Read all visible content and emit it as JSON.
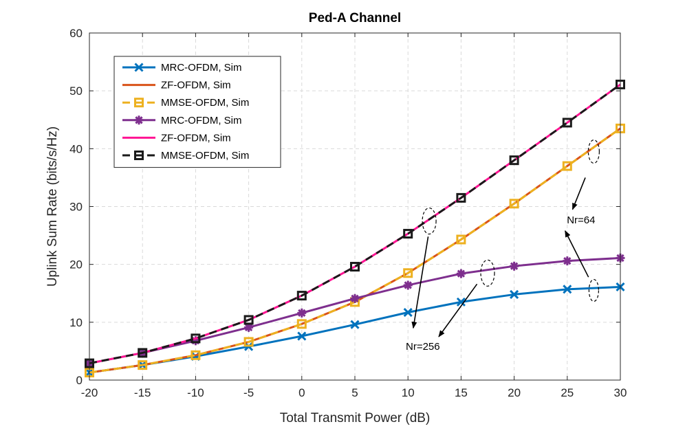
{
  "chart_data": {
    "type": "line",
    "title": "Ped-A Channel",
    "xlabel": "Total Transmit Power (dB)",
    "ylabel": "Uplink Sum Rate (bits/s/Hz)",
    "xlim": [
      -20,
      30
    ],
    "ylim": [
      0,
      60
    ],
    "xticks": [
      "-20",
      "-15",
      "-10",
      "-5",
      "0",
      "5",
      "10",
      "15",
      "20",
      "25",
      "30"
    ],
    "yticks": [
      "0",
      "10",
      "20",
      "30",
      "40",
      "50",
      "60"
    ],
    "grid": true,
    "legend_position": "top-left",
    "x": [
      -20,
      -15,
      -10,
      -5,
      0,
      5,
      10,
      15,
      20,
      25,
      30
    ],
    "series": [
      {
        "name": "MRC-OFDM, Sim",
        "color": "#0072BD",
        "marker": "x",
        "dash": "solid",
        "values": [
          1.3,
          2.6,
          4.1,
          5.8,
          7.6,
          9.6,
          11.7,
          13.5,
          14.8,
          15.7,
          16.1
        ]
      },
      {
        "name": "ZF-OFDM, Sim",
        "color": "#D95319",
        "marker": "none",
        "dash": "solid",
        "values": [
          1.3,
          2.6,
          4.3,
          6.6,
          9.7,
          13.5,
          18.5,
          24.3,
          30.5,
          37.0,
          43.5
        ]
      },
      {
        "name": "MMSE-OFDM, Sim",
        "color": "#EDB120",
        "marker": "square",
        "dash": "dashed",
        "values": [
          1.3,
          2.6,
          4.3,
          6.6,
          9.7,
          13.5,
          18.5,
          24.3,
          30.5,
          37.0,
          43.5
        ]
      },
      {
        "name": "MRC-OFDM, Sim",
        "color": "#7E2F8E",
        "marker": "star",
        "dash": "solid",
        "values": [
          2.9,
          4.7,
          6.8,
          9.1,
          11.6,
          14.1,
          16.4,
          18.4,
          19.7,
          20.6,
          21.1
        ]
      },
      {
        "name": "ZF-OFDM, Sim",
        "color": "#FF1493",
        "marker": "none",
        "dash": "solid",
        "values": [
          2.9,
          4.7,
          7.2,
          10.4,
          14.6,
          19.6,
          25.3,
          31.5,
          38.0,
          44.5,
          51.1
        ]
      },
      {
        "name": "MMSE-OFDM, Sim",
        "color": "#1A1A1A",
        "marker": "square",
        "dash": "dashed",
        "values": [
          2.9,
          4.7,
          7.2,
          10.4,
          14.6,
          19.6,
          25.3,
          31.5,
          38.0,
          44.5,
          51.1
        ]
      }
    ],
    "annotations": [
      {
        "text": "Nr=256"
      },
      {
        "text": "Nr=64"
      }
    ]
  }
}
